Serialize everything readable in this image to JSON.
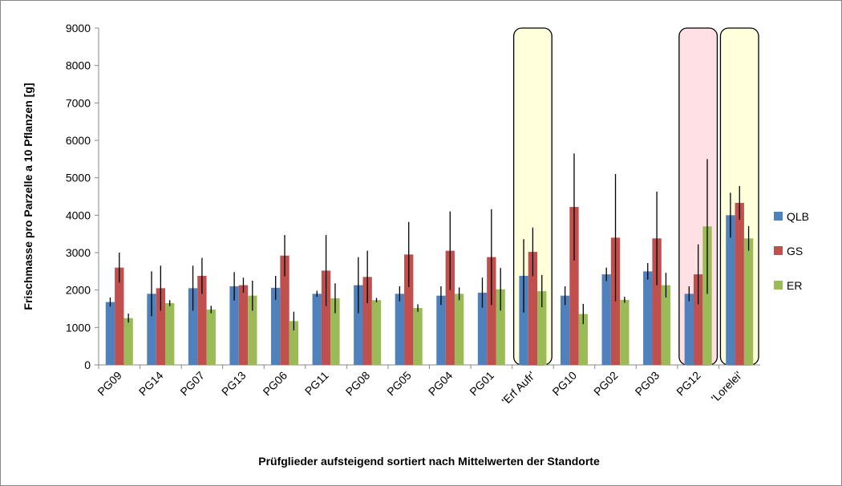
{
  "chart_data": {
    "type": "bar",
    "y_label": "Frischmasse pro Parzelle a 10 Pflanzen [g]",
    "x_label": "Prüfglieder aufsteigend sortiert nach Mittelwerten der Standorte",
    "categories": [
      "PG09",
      "PG14",
      "PG07",
      "PG13",
      "PG06",
      "PG11",
      "PG08",
      "PG05",
      "PG04",
      "PG01",
      "'Erf Aufr'",
      "PG10",
      "PG02",
      "PG03",
      "PG12",
      "'Lorelei'"
    ],
    "series": [
      {
        "name": "QLB",
        "color": "#4f81bd",
        "values": [
          1680,
          1900,
          2050,
          2100,
          2060,
          1900,
          2130,
          1900,
          1850,
          1930,
          2380,
          1850,
          2420,
          2500,
          1900,
          4000
        ],
        "errors": [
          120,
          600,
          600,
          380,
          320,
          80,
          750,
          200,
          250,
          400,
          980,
          250,
          180,
          220,
          200,
          600
        ]
      },
      {
        "name": "GS",
        "color": "#c0504d",
        "values": [
          2600,
          2050,
          2380,
          2130,
          2920,
          2520,
          2350,
          2950,
          3050,
          2880,
          3020,
          4220,
          3400,
          3380,
          2420,
          4330
        ],
        "errors": [
          400,
          600,
          480,
          200,
          550,
          950,
          700,
          870,
          1050,
          1280,
          650,
          1430,
          1700,
          1250,
          800,
          450
        ]
      },
      {
        "name": "ER",
        "color": "#9bbb59",
        "values": [
          1250,
          1650,
          1480,
          1850,
          1170,
          1780,
          1730,
          1520,
          1900,
          2020,
          1970,
          1360,
          1740,
          2130,
          3700,
          3380
        ],
        "errors": [
          120,
          80,
          100,
          400,
          250,
          400,
          60,
          100,
          170,
          570,
          430,
          270,
          80,
          330,
          1800,
          330
        ]
      }
    ],
    "highlights": [
      {
        "category": "'Erf Aufr'",
        "color": "#ffffdc"
      },
      {
        "category": "PG12",
        "color": "#ffe0e4"
      },
      {
        "category": "'Lorelei'",
        "color": "#ffffdc"
      }
    ],
    "ylim": [
      0,
      9000
    ],
    "yticks": [
      0,
      1000,
      2000,
      3000,
      4000,
      5000,
      6000,
      7000,
      8000,
      9000
    ],
    "grid": false,
    "legend": "right"
  }
}
